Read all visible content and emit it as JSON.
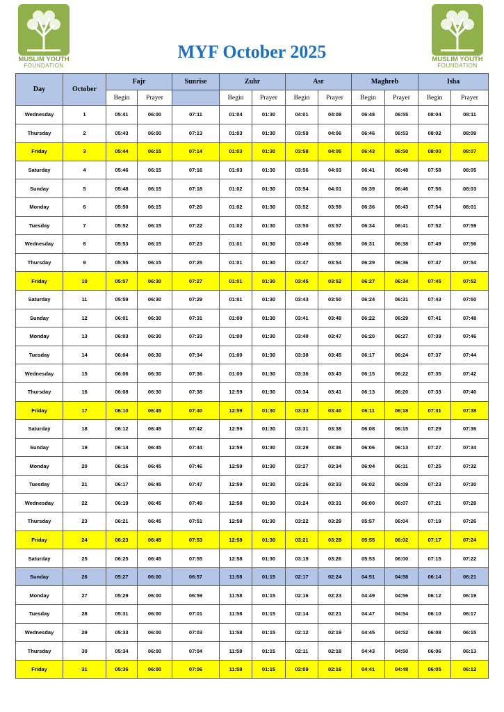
{
  "logo": {
    "line1": "MUSLIM YOUTH",
    "line2": "FOUNDATION"
  },
  "header": {
    "title": "MYF October 2025"
  },
  "table": {
    "columns": {
      "day": "Day",
      "month": "October",
      "fajr": "Fajr",
      "sunrise": "Sunrise",
      "zuhr": "Zuhr",
      "asr": "Asr",
      "maghreb": "Maghreb",
      "isha": "Isha",
      "begin": "Begin",
      "prayer": "Prayer"
    },
    "rows": [
      {
        "cells": [
          "Wednesday",
          "1",
          "05:41",
          "06:00",
          "07:11",
          "01:04",
          "01:30",
          "04:01",
          "04:08",
          "06:48",
          "06:55",
          "08:04",
          "08:11"
        ]
      },
      {
        "cells": [
          "Thursday",
          "2",
          "05:43",
          "06:00",
          "07:13",
          "01:03",
          "01:30",
          "03:59",
          "04:06",
          "06:46",
          "06:53",
          "08:02",
          "08:09"
        ]
      },
      {
        "cells": [
          "Friday",
          "3",
          "05:44",
          "06:15",
          "07:14",
          "01:03",
          "01:30",
          "03:58",
          "04:05",
          "06:43",
          "06:50",
          "08:00",
          "08:07"
        ],
        "fill": "#ffff00"
      },
      {
        "cells": [
          "Saturday",
          "4",
          "05:46",
          "06:15",
          "07:16",
          "01:03",
          "01:30",
          "03:56",
          "04:03",
          "06:41",
          "06:48",
          "07:58",
          "08:05"
        ]
      },
      {
        "cells": [
          "Sunday",
          "5",
          "05:48",
          "06:15",
          "07:18",
          "01:02",
          "01:30",
          "03:54",
          "04:01",
          "06:39",
          "06:46",
          "07:56",
          "08:03"
        ]
      },
      {
        "cells": [
          "Monday",
          "6",
          "05:50",
          "06:15",
          "07:20",
          "01:02",
          "01:30",
          "03:52",
          "03:59",
          "06:36",
          "06:43",
          "07:54",
          "08:01"
        ]
      },
      {
        "cells": [
          "Tuesday",
          "7",
          "05:52",
          "06:15",
          "07:22",
          "01:02",
          "01:30",
          "03:50",
          "03:57",
          "06:34",
          "06:41",
          "07:52",
          "07:59"
        ]
      },
      {
        "cells": [
          "Wednesday",
          "8",
          "05:53",
          "06:15",
          "07:23",
          "01:01",
          "01:30",
          "03:49",
          "03:56",
          "06:31",
          "06:38",
          "07:49",
          "07:56"
        ]
      },
      {
        "cells": [
          "Thursday",
          "9",
          "05:55",
          "06:15",
          "07:25",
          "01:01",
          "01:30",
          "03:47",
          "03:54",
          "06:29",
          "06:36",
          "07:47",
          "07:54"
        ]
      },
      {
        "cells": [
          "Friday",
          "10",
          "05:57",
          "06:30",
          "07:27",
          "01:01",
          "01:30",
          "03:45",
          "03:52",
          "06:27",
          "06:34",
          "07:45",
          "07:52"
        ],
        "fill": "#ffff00"
      },
      {
        "cells": [
          "Saturday",
          "11",
          "05:59",
          "06:30",
          "07:29",
          "01:01",
          "01:30",
          "03:43",
          "03:50",
          "06:24",
          "06:31",
          "07:43",
          "07:50"
        ]
      },
      {
        "cells": [
          "Sunday",
          "12",
          "06:01",
          "06:30",
          "07:31",
          "01:00",
          "01:30",
          "03:41",
          "03:48",
          "06:22",
          "06:29",
          "07:41",
          "07:48"
        ]
      },
      {
        "cells": [
          "Monday",
          "13",
          "06:03",
          "06:30",
          "07:33",
          "01:00",
          "01:30",
          "03:40",
          "03:47",
          "06:20",
          "06:27",
          "07:39",
          "07:46"
        ]
      },
      {
        "cells": [
          "Tuesday",
          "14",
          "06:04",
          "06:30",
          "07:34",
          "01:00",
          "01:30",
          "03:38",
          "03:45",
          "06:17",
          "06:24",
          "07:37",
          "07:44"
        ]
      },
      {
        "cells": [
          "Wednesday",
          "15",
          "06:06",
          "06:30",
          "07:36",
          "01:00",
          "01:30",
          "03:36",
          "03:43",
          "06:15",
          "06:22",
          "07:35",
          "07:42"
        ]
      },
      {
        "cells": [
          "Thursday",
          "16",
          "06:08",
          "06:30",
          "07:38",
          "12:59",
          "01:30",
          "03:34",
          "03:41",
          "06:13",
          "06:20",
          "07:33",
          "07:40"
        ]
      },
      {
        "cells": [
          "Friday",
          "17",
          "06:10",
          "06:45",
          "07:40",
          "12:59",
          "01:30",
          "03:33",
          "03:40",
          "06:11",
          "06:18",
          "07:31",
          "07:38"
        ],
        "fill": "#ffff00"
      },
      {
        "cells": [
          "Saturday",
          "18",
          "06:12",
          "06:45",
          "07:42",
          "12:59",
          "01:30",
          "03:31",
          "03:38",
          "06:08",
          "06:15",
          "07:29",
          "07:36"
        ]
      },
      {
        "cells": [
          "Sunday",
          "19",
          "06:14",
          "06:45",
          "07:44",
          "12:59",
          "01:30",
          "03:29",
          "03:36",
          "06:06",
          "06:13",
          "07:27",
          "07:34"
        ]
      },
      {
        "cells": [
          "Monday",
          "20",
          "06:16",
          "06:45",
          "07:46",
          "12:59",
          "01:30",
          "03:27",
          "03:34",
          "06:04",
          "06:11",
          "07:25",
          "07:32"
        ]
      },
      {
        "cells": [
          "Tuesday",
          "21",
          "06:17",
          "06:45",
          "07:47",
          "12:59",
          "01:30",
          "03:26",
          "03:33",
          "06:02",
          "06:09",
          "07:23",
          "07:30"
        ]
      },
      {
        "cells": [
          "Wednesday",
          "22",
          "06:19",
          "06:45",
          "07:49",
          "12:58",
          "01:30",
          "03:24",
          "03:31",
          "06:00",
          "06:07",
          "07:21",
          "07:28"
        ]
      },
      {
        "cells": [
          "Thursday",
          "23",
          "06:21",
          "06:45",
          "07:51",
          "12:58",
          "01:30",
          "03:22",
          "03:29",
          "05:57",
          "06:04",
          "07:19",
          "07:26"
        ]
      },
      {
        "cells": [
          "Friday",
          "24",
          "06:23",
          "06:45",
          "07:53",
          "12:58",
          "01:30",
          "03:21",
          "03:28",
          "05:55",
          "06:02",
          "07:17",
          "07:24"
        ],
        "fill": "#ffff00"
      },
      {
        "cells": [
          "Saturday",
          "25",
          "06:25",
          "06:45",
          "07:55",
          "12:58",
          "01:30",
          "03:19",
          "03:26",
          "05:53",
          "06:00",
          "07:15",
          "07:22"
        ]
      },
      {
        "cells": [
          "Sunday",
          "26",
          "05:27",
          "06:00",
          "06:57",
          "11:58",
          "01:15",
          "02:17",
          "02:24",
          "04:51",
          "04:58",
          "06:14",
          "06:21"
        ],
        "fill": "#b4c6e7"
      },
      {
        "cells": [
          "Monday",
          "27",
          "05:29",
          "06:00",
          "06:59",
          "11:58",
          "01:15",
          "02:16",
          "02:23",
          "04:49",
          "04:56",
          "06:12",
          "06:19"
        ]
      },
      {
        "cells": [
          "Tuesday",
          "28",
          "05:31",
          "06:00",
          "07:01",
          "11:58",
          "01:15",
          "02:14",
          "02:21",
          "04:47",
          "04:54",
          "06:10",
          "06:17"
        ]
      },
      {
        "cells": [
          "Wednesday",
          "29",
          "05:33",
          "06:00",
          "07:03",
          "11:58",
          "01:15",
          "02:12",
          "02:19",
          "04:45",
          "04:52",
          "06:08",
          "06:15"
        ]
      },
      {
        "cells": [
          "Thursday",
          "30",
          "05:34",
          "06:00",
          "07:04",
          "11:58",
          "01:15",
          "02:11",
          "02:18",
          "04:43",
          "04:50",
          "06:06",
          "06:13"
        ]
      },
      {
        "cells": [
          "Friday",
          "31",
          "05:36",
          "06:00",
          "07:06",
          "11:58",
          "01:15",
          "02:09",
          "02:16",
          "04:41",
          "04:48",
          "06:05",
          "06:12"
        ],
        "fill": "#ffff00"
      }
    ]
  }
}
